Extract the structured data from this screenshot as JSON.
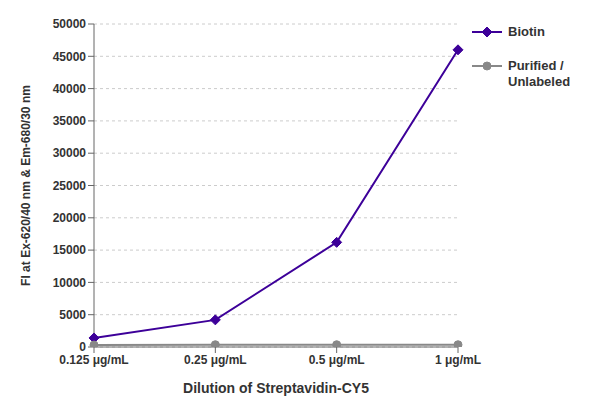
{
  "chart_data": {
    "type": "line",
    "categories": [
      "0.125 μg/mL",
      "0.25 μg/mL",
      "0.5 μg/mL",
      "1 μg/mL"
    ],
    "series": [
      {
        "name": "Biotin",
        "color": "#3d0099",
        "marker": "diamond",
        "values": [
          1400,
          4200,
          16200,
          46000
        ]
      },
      {
        "name": "Purified /\nUnlabeled",
        "color": "#888888",
        "marker": "circle",
        "values": [
          300,
          350,
          350,
          350
        ]
      }
    ],
    "xlabel": "Dilution of Streptavidin-CY5",
    "ylabel": "FI at Ex-620/40 nm & Em-680/30 nm",
    "ylim": [
      0,
      50000
    ],
    "yticks": [
      0,
      5000,
      10000,
      15000,
      20000,
      25000,
      30000,
      35000,
      40000,
      45000,
      50000
    ],
    "grid": true,
    "legend": "right"
  }
}
